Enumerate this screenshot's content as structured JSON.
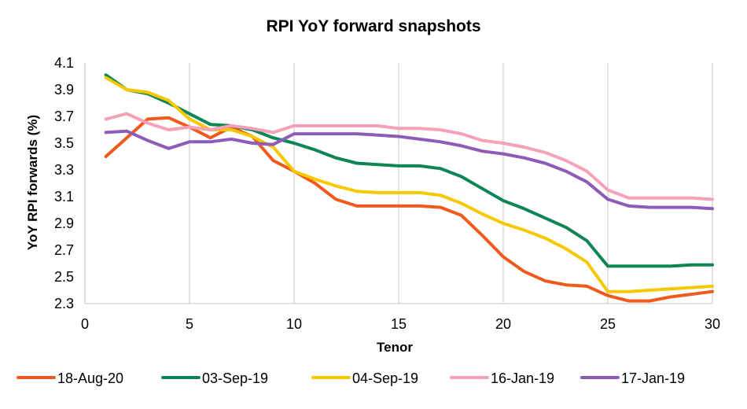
{
  "chart_data": {
    "type": "line",
    "title": "RPI YoY forward snapshots",
    "xlabel": "Tenor",
    "ylabel": "YoY RPI forwards (%)",
    "xlim": [
      0,
      30
    ],
    "ylim": [
      2.3,
      4.1
    ],
    "x_ticks": [
      "0",
      "5",
      "10",
      "15",
      "20",
      "25",
      "30"
    ],
    "y_ticks": [
      "2.3",
      "2.5",
      "2.7",
      "2.9",
      "3.1",
      "3.3",
      "3.5",
      "3.7",
      "3.9",
      "4.1"
    ],
    "grid": "vertical",
    "legend_position": "bottom",
    "x": [
      1,
      2,
      3,
      4,
      5,
      6,
      7,
      8,
      9,
      10,
      11,
      12,
      13,
      14,
      15,
      16,
      17,
      18,
      19,
      20,
      21,
      22,
      23,
      24,
      25,
      26,
      27,
      28,
      29,
      30
    ],
    "series": [
      {
        "name": "18-Aug-20",
        "color": "#f05a1e",
        "values": [
          3.4,
          3.54,
          3.68,
          3.69,
          3.62,
          3.54,
          3.62,
          3.55,
          3.37,
          3.29,
          3.2,
          3.08,
          3.03,
          3.03,
          3.03,
          3.03,
          3.02,
          2.96,
          2.81,
          2.65,
          2.54,
          2.47,
          2.44,
          2.43,
          2.36,
          2.32,
          2.32,
          2.35,
          2.37,
          2.39
        ]
      },
      {
        "name": "03-Sep-19",
        "color": "#0e8555",
        "values": [
          4.01,
          3.9,
          3.87,
          3.8,
          3.72,
          3.64,
          3.63,
          3.6,
          3.54,
          3.5,
          3.45,
          3.39,
          3.35,
          3.34,
          3.33,
          3.33,
          3.31,
          3.25,
          3.16,
          3.07,
          3.01,
          2.94,
          2.87,
          2.77,
          2.58,
          2.58,
          2.58,
          2.58,
          2.59,
          2.59
        ]
      },
      {
        "name": "04-Sep-19",
        "color": "#f5c800",
        "values": [
          3.99,
          3.9,
          3.88,
          3.82,
          3.68,
          3.6,
          3.6,
          3.55,
          3.47,
          3.29,
          3.23,
          3.18,
          3.14,
          3.13,
          3.13,
          3.13,
          3.11,
          3.05,
          2.97,
          2.9,
          2.85,
          2.79,
          2.71,
          2.61,
          2.39,
          2.39,
          2.4,
          2.41,
          2.42,
          2.43
        ]
      },
      {
        "name": "16-Jan-19",
        "color": "#f7a1b8",
        "values": [
          3.68,
          3.72,
          3.65,
          3.6,
          3.62,
          3.6,
          3.63,
          3.61,
          3.58,
          3.63,
          3.63,
          3.63,
          3.63,
          3.63,
          3.61,
          3.61,
          3.6,
          3.57,
          3.52,
          3.5,
          3.47,
          3.43,
          3.37,
          3.29,
          3.15,
          3.09,
          3.09,
          3.09,
          3.09,
          3.08
        ]
      },
      {
        "name": "17-Jan-19",
        "color": "#8e5bb8",
        "values": [
          3.58,
          3.59,
          3.52,
          3.46,
          3.51,
          3.51,
          3.53,
          3.5,
          3.49,
          3.57,
          3.57,
          3.57,
          3.57,
          3.56,
          3.55,
          3.53,
          3.51,
          3.48,
          3.44,
          3.42,
          3.39,
          3.35,
          3.29,
          3.21,
          3.08,
          3.03,
          3.02,
          3.02,
          3.02,
          3.01
        ]
      }
    ]
  }
}
